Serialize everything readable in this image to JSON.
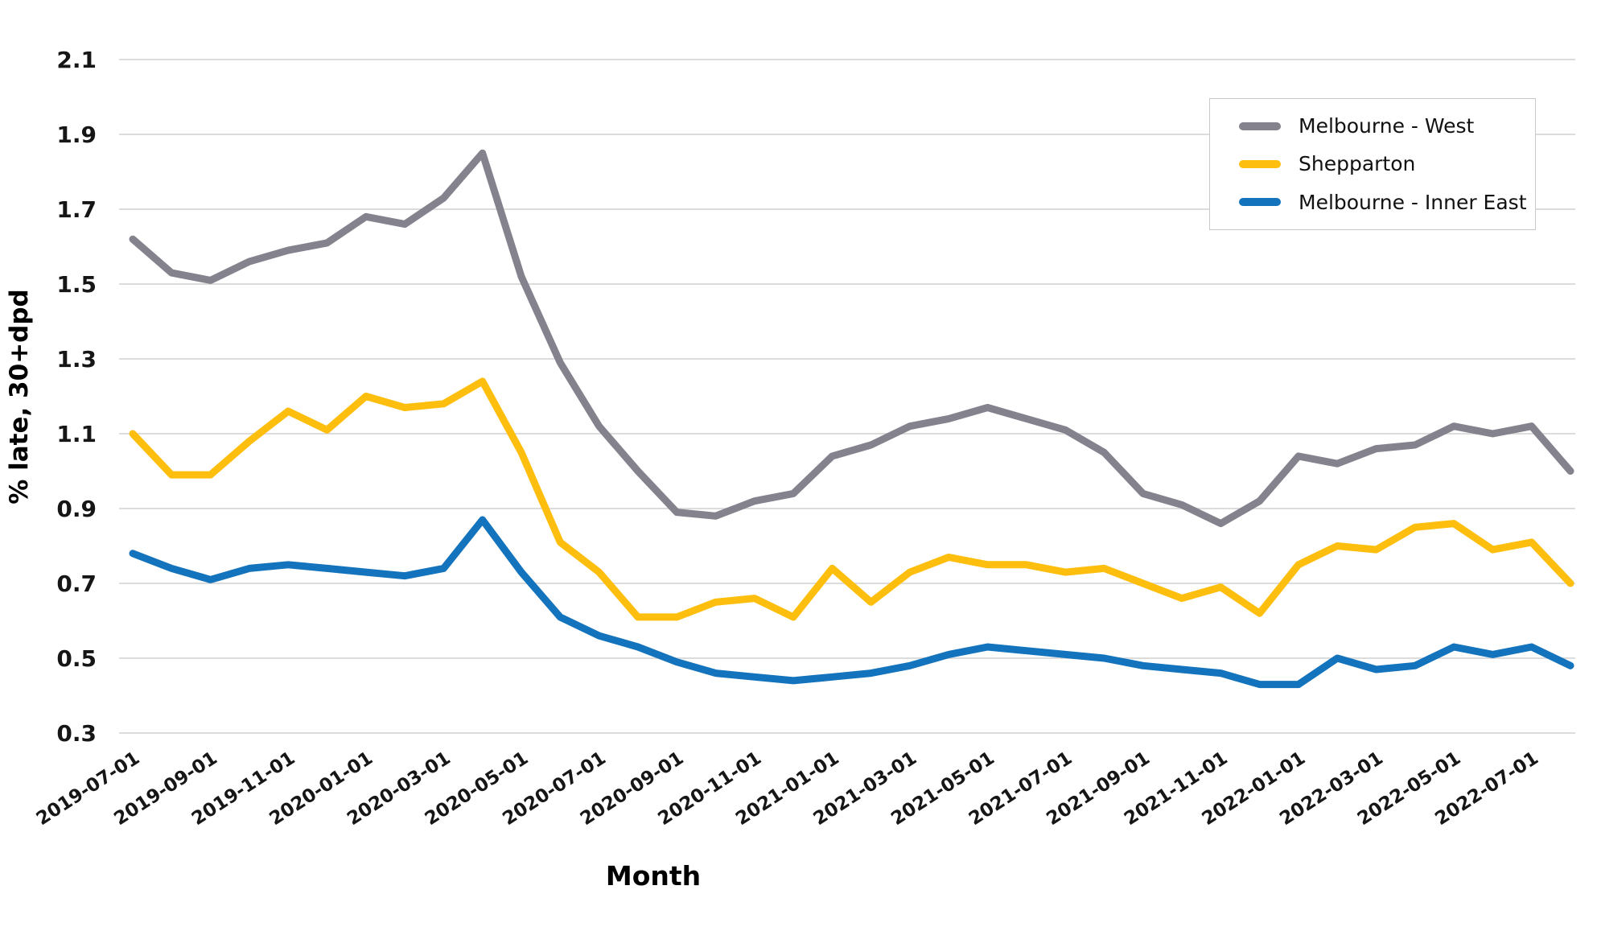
{
  "chart_data": {
    "type": "line",
    "title": "",
    "xlabel": "Month",
    "ylabel": "% late, 30+dpd",
    "ylim": [
      0.3,
      2.1
    ],
    "y_ticks": [
      0.3,
      0.5,
      0.7,
      0.9,
      1.1,
      1.3,
      1.5,
      1.7,
      1.9,
      2.1
    ],
    "grid": "horizontal",
    "grid_color": "#dcdcdc",
    "text_color": "#161616",
    "legend_position": "top-right",
    "x": [
      "2019-07-01",
      "2019-08-01",
      "2019-09-01",
      "2019-10-01",
      "2019-11-01",
      "2019-12-01",
      "2020-01-01",
      "2020-02-01",
      "2020-03-01",
      "2020-04-01",
      "2020-05-01",
      "2020-06-01",
      "2020-07-01",
      "2020-08-01",
      "2020-09-01",
      "2020-10-01",
      "2020-11-01",
      "2020-12-01",
      "2021-01-01",
      "2021-02-01",
      "2021-03-01",
      "2021-04-01",
      "2021-05-01",
      "2021-06-01",
      "2021-07-01",
      "2021-08-01",
      "2021-09-01",
      "2021-10-01",
      "2021-11-01",
      "2021-12-01",
      "2022-01-01",
      "2022-02-01",
      "2022-03-01",
      "2022-04-01",
      "2022-05-01",
      "2022-06-01",
      "2022-07-01",
      "2022-08-01"
    ],
    "x_tick_labels": [
      "2019-07-01",
      "2019-09-01",
      "2019-11-01",
      "2020-01-01",
      "2020-03-01",
      "2020-05-01",
      "2020-07-01",
      "2020-09-01",
      "2020-11-01",
      "2021-01-01",
      "2021-03-01",
      "2021-05-01",
      "2021-07-01",
      "2021-09-01",
      "2021-11-01",
      "2022-01-01",
      "2022-03-01",
      "2022-05-01",
      "2022-07-01"
    ],
    "series": [
      {
        "name": "Melbourne - West",
        "color": "#83828d",
        "values": [
          1.62,
          1.53,
          1.51,
          1.56,
          1.59,
          1.61,
          1.68,
          1.66,
          1.73,
          1.85,
          1.52,
          1.29,
          1.12,
          1.0,
          0.89,
          0.88,
          0.92,
          0.94,
          1.04,
          1.07,
          1.12,
          1.14,
          1.17,
          1.14,
          1.11,
          1.05,
          0.94,
          0.91,
          0.86,
          0.92,
          1.04,
          1.02,
          1.06,
          1.07,
          1.12,
          1.1,
          1.12,
          1.0
        ]
      },
      {
        "name": "Shepparton",
        "color": "#fdbe0d",
        "values": [
          1.1,
          0.99,
          0.99,
          1.08,
          1.16,
          1.11,
          1.2,
          1.17,
          1.18,
          1.24,
          1.05,
          0.81,
          0.73,
          0.61,
          0.61,
          0.65,
          0.66,
          0.61,
          0.74,
          0.65,
          0.73,
          0.77,
          0.75,
          0.75,
          0.73,
          0.74,
          0.7,
          0.66,
          0.69,
          0.62,
          0.75,
          0.8,
          0.79,
          0.85,
          0.86,
          0.79,
          0.81,
          0.7
        ]
      },
      {
        "name": "Melbourne - Inner East",
        "color": "#1373bc",
        "values": [
          0.78,
          0.74,
          0.71,
          0.74,
          0.75,
          0.74,
          0.73,
          0.72,
          0.74,
          0.87,
          0.73,
          0.61,
          0.56,
          0.53,
          0.49,
          0.46,
          0.45,
          0.44,
          0.45,
          0.46,
          0.48,
          0.51,
          0.53,
          0.52,
          0.51,
          0.5,
          0.48,
          0.47,
          0.46,
          0.43,
          0.43,
          0.5,
          0.47,
          0.48,
          0.53,
          0.51,
          0.53,
          0.48
        ]
      }
    ]
  }
}
